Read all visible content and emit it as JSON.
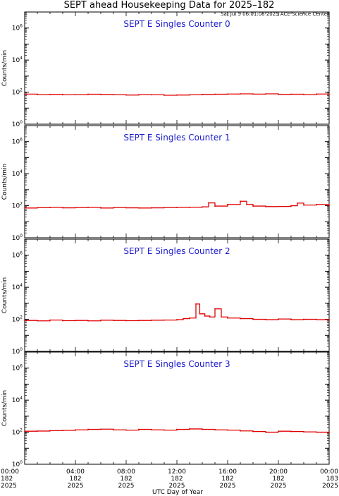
{
  "title": "SEPT ahead Housekeeping Data for 2025–182",
  "timestamp": "Sat Jul  5 06:01:08 2025 ACE Science Center",
  "chart_data": {
    "type": "line",
    "xlabel": "UTC Day of Year",
    "ylabel": "Counts/min",
    "yscale": "log",
    "ylim": [
      1,
      10000000
    ],
    "ytick_labels": [
      {
        "base": "10",
        "exp": "0"
      },
      {
        "base": "10",
        "exp": "2"
      },
      {
        "base": "10",
        "exp": "4"
      },
      {
        "base": "10",
        "exp": "6"
      }
    ],
    "xlim_hours": [
      0,
      24
    ],
    "xtick_labels": [
      {
        "time": "00:00",
        "day": "182",
        "year": "2025"
      },
      {
        "time": "04:00",
        "day": "182",
        "year": "2025"
      },
      {
        "time": "08:00",
        "day": "182",
        "year": "2025"
      },
      {
        "time": "12:00",
        "day": "182",
        "year": "2025"
      },
      {
        "time": "16:00",
        "day": "182",
        "year": "2025"
      },
      {
        "time": "20:00",
        "day": "182",
        "year": "2025"
      },
      {
        "time": "00:00",
        "day": "183",
        "year": "2025"
      }
    ],
    "line_color": "#e00000",
    "panels": [
      {
        "name": "SEPT E Singles Counter 0",
        "x_hours": [
          0,
          1,
          2,
          3,
          4,
          5,
          6,
          7,
          8,
          9,
          10,
          11,
          12,
          13,
          14,
          15,
          16,
          17,
          18,
          19,
          20,
          21,
          22,
          23,
          24
        ],
        "values": [
          75,
          70,
          72,
          68,
          70,
          74,
          71,
          69,
          66,
          70,
          68,
          64,
          66,
          68,
          72,
          74,
          76,
          78,
          75,
          78,
          72,
          74,
          70,
          76,
          68
        ]
      },
      {
        "name": "SEPT E Singles Counter 1",
        "x_hours": [
          0,
          1,
          2,
          3,
          4,
          5,
          6,
          7,
          8,
          9,
          10,
          11,
          12,
          13,
          14,
          14.5,
          15,
          16,
          17,
          17.5,
          18,
          19,
          20,
          21,
          21.5,
          22,
          23,
          24
        ],
        "values": [
          72,
          75,
          78,
          74,
          76,
          78,
          72,
          76,
          74,
          72,
          74,
          76,
          78,
          80,
          85,
          150,
          95,
          120,
          190,
          120,
          95,
          88,
          90,
          100,
          145,
          110,
          120,
          100
        ]
      },
      {
        "name": "SEPT E Singles Counter 2",
        "x_hours": [
          0,
          1,
          2,
          3,
          4,
          5,
          6,
          7,
          8,
          9,
          10,
          11,
          12,
          12.5,
          13,
          13.5,
          13.8,
          14.2,
          14.6,
          15,
          15.5,
          16,
          17,
          18,
          19,
          20,
          21,
          22,
          23,
          24
        ],
        "values": [
          85,
          80,
          90,
          82,
          85,
          80,
          88,
          85,
          82,
          85,
          88,
          90,
          95,
          110,
          120,
          900,
          220,
          160,
          140,
          450,
          140,
          120,
          110,
          100,
          95,
          105,
          95,
          100,
          95,
          90
        ]
      },
      {
        "name": "SEPT E Singles Counter 3",
        "x_hours": [
          0,
          1,
          2,
          3,
          4,
          5,
          6,
          7,
          8,
          9,
          10,
          11,
          12,
          13,
          14,
          15,
          16,
          17,
          18,
          19,
          20,
          21,
          22,
          23,
          24
        ],
        "values": [
          115,
          118,
          125,
          130,
          140,
          150,
          155,
          140,
          135,
          150,
          140,
          135,
          150,
          160,
          150,
          140,
          135,
          120,
          110,
          100,
          115,
          110,
          105,
          100,
          95
        ]
      }
    ]
  }
}
